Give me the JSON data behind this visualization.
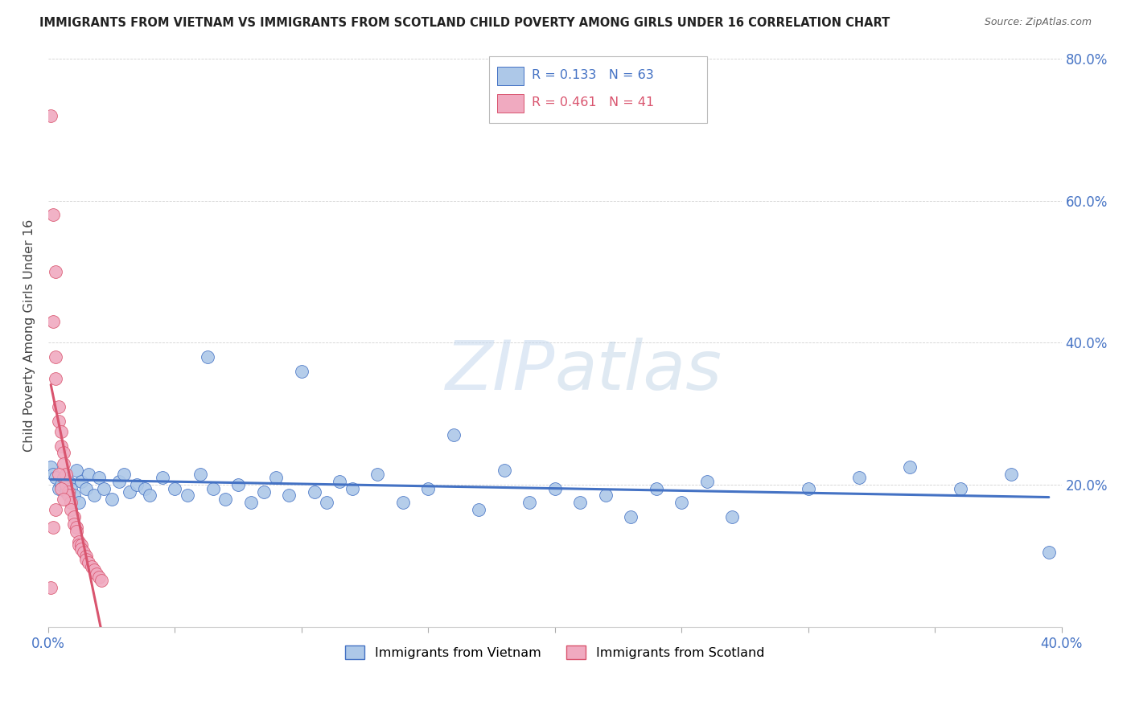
{
  "title": "IMMIGRANTS FROM VIETNAM VS IMMIGRANTS FROM SCOTLAND CHILD POVERTY AMONG GIRLS UNDER 16 CORRELATION CHART",
  "source": "Source: ZipAtlas.com",
  "ylabel": "Child Poverty Among Girls Under 16",
  "xlim": [
    0.0,
    0.4
  ],
  "ylim": [
    0.0,
    0.82
  ],
  "vietnam_R": 0.133,
  "vietnam_N": 63,
  "scotland_R": 0.461,
  "scotland_N": 41,
  "vietnam_color": "#adc8e8",
  "scotland_color": "#f0aac0",
  "vietnam_line_color": "#4472c4",
  "scotland_line_color": "#d9546e",
  "vietnam_scatter": [
    [
      0.001,
      0.225
    ],
    [
      0.002,
      0.215
    ],
    [
      0.003,
      0.21
    ],
    [
      0.004,
      0.195
    ],
    [
      0.005,
      0.2
    ],
    [
      0.006,
      0.21
    ],
    [
      0.007,
      0.19
    ],
    [
      0.008,
      0.205
    ],
    [
      0.009,
      0.195
    ],
    [
      0.01,
      0.185
    ],
    [
      0.011,
      0.22
    ],
    [
      0.012,
      0.175
    ],
    [
      0.013,
      0.205
    ],
    [
      0.015,
      0.195
    ],
    [
      0.016,
      0.215
    ],
    [
      0.018,
      0.185
    ],
    [
      0.02,
      0.21
    ],
    [
      0.022,
      0.195
    ],
    [
      0.025,
      0.18
    ],
    [
      0.028,
      0.205
    ],
    [
      0.03,
      0.215
    ],
    [
      0.032,
      0.19
    ],
    [
      0.035,
      0.2
    ],
    [
      0.038,
      0.195
    ],
    [
      0.04,
      0.185
    ],
    [
      0.045,
      0.21
    ],
    [
      0.05,
      0.195
    ],
    [
      0.055,
      0.185
    ],
    [
      0.06,
      0.215
    ],
    [
      0.063,
      0.38
    ],
    [
      0.065,
      0.195
    ],
    [
      0.07,
      0.18
    ],
    [
      0.075,
      0.2
    ],
    [
      0.08,
      0.175
    ],
    [
      0.085,
      0.19
    ],
    [
      0.09,
      0.21
    ],
    [
      0.095,
      0.185
    ],
    [
      0.1,
      0.36
    ],
    [
      0.105,
      0.19
    ],
    [
      0.11,
      0.175
    ],
    [
      0.115,
      0.205
    ],
    [
      0.12,
      0.195
    ],
    [
      0.13,
      0.215
    ],
    [
      0.14,
      0.175
    ],
    [
      0.15,
      0.195
    ],
    [
      0.16,
      0.27
    ],
    [
      0.17,
      0.165
    ],
    [
      0.18,
      0.22
    ],
    [
      0.19,
      0.175
    ],
    [
      0.2,
      0.195
    ],
    [
      0.21,
      0.175
    ],
    [
      0.22,
      0.185
    ],
    [
      0.23,
      0.155
    ],
    [
      0.24,
      0.195
    ],
    [
      0.25,
      0.175
    ],
    [
      0.26,
      0.205
    ],
    [
      0.27,
      0.155
    ],
    [
      0.3,
      0.195
    ],
    [
      0.32,
      0.21
    ],
    [
      0.34,
      0.225
    ],
    [
      0.36,
      0.195
    ],
    [
      0.38,
      0.215
    ],
    [
      0.395,
      0.105
    ]
  ],
  "scotland_scatter": [
    [
      0.001,
      0.72
    ],
    [
      0.002,
      0.58
    ],
    [
      0.003,
      0.5
    ],
    [
      0.002,
      0.43
    ],
    [
      0.003,
      0.38
    ],
    [
      0.003,
      0.35
    ],
    [
      0.004,
      0.31
    ],
    [
      0.004,
      0.29
    ],
    [
      0.005,
      0.275
    ],
    [
      0.005,
      0.255
    ],
    [
      0.006,
      0.245
    ],
    [
      0.006,
      0.23
    ],
    [
      0.007,
      0.215
    ],
    [
      0.007,
      0.2
    ],
    [
      0.008,
      0.19
    ],
    [
      0.008,
      0.185
    ],
    [
      0.009,
      0.175
    ],
    [
      0.009,
      0.165
    ],
    [
      0.01,
      0.155
    ],
    [
      0.01,
      0.145
    ],
    [
      0.011,
      0.14
    ],
    [
      0.011,
      0.135
    ],
    [
      0.012,
      0.12
    ],
    [
      0.012,
      0.115
    ],
    [
      0.013,
      0.115
    ],
    [
      0.013,
      0.11
    ],
    [
      0.014,
      0.105
    ],
    [
      0.015,
      0.1
    ],
    [
      0.015,
      0.095
    ],
    [
      0.016,
      0.09
    ],
    [
      0.017,
      0.085
    ],
    [
      0.018,
      0.08
    ],
    [
      0.019,
      0.075
    ],
    [
      0.02,
      0.07
    ],
    [
      0.021,
      0.065
    ],
    [
      0.004,
      0.215
    ],
    [
      0.005,
      0.195
    ],
    [
      0.006,
      0.18
    ],
    [
      0.003,
      0.165
    ],
    [
      0.002,
      0.14
    ],
    [
      0.001,
      0.055
    ]
  ]
}
